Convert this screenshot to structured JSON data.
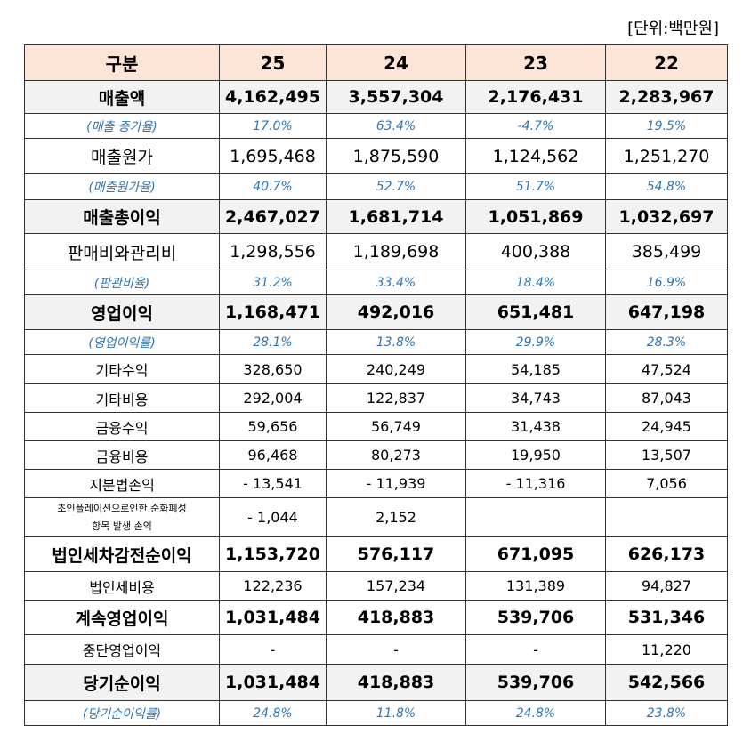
{
  "unit": "[단위:백만원]",
  "table": {
    "header": [
      "구분",
      "25",
      "24",
      "23",
      "22"
    ],
    "rows": [
      {
        "label": "매출액",
        "values": [
          "4,162,495",
          "3,557,304",
          "2,176,431",
          "2,283,967"
        ]
      },
      {
        "label": "(매출 증가율)",
        "values": [
          "17.0%",
          "63.4%",
          "-4.7%",
          "19.5%"
        ]
      },
      {
        "label": "매출원가",
        "values": [
          "1,695,468",
          "1,875,590",
          "1,124,562",
          "1,251,270"
        ]
      },
      {
        "label": "(매출원가율)",
        "values": [
          "40.7%",
          "52.7%",
          "51.7%",
          "54.8%"
        ]
      },
      {
        "label": "매출총이익",
        "values": [
          "2,467,027",
          "1,681,714",
          "1,051,869",
          "1,032,697"
        ]
      },
      {
        "label": "판매비와관리비",
        "values": [
          "1,298,556",
          "1,189,698",
          "400,388",
          "385,499"
        ]
      },
      {
        "label": "(판관비율)",
        "values": [
          "31.2%",
          "33.4%",
          "18.4%",
          "16.9%"
        ]
      },
      {
        "label": "영업이익",
        "values": [
          "1,168,471",
          "492,016",
          "651,481",
          "647,198"
        ]
      },
      {
        "label": "(영업이익률)",
        "values": [
          "28.1%",
          "13.8%",
          "29.9%",
          "28.3%"
        ]
      },
      {
        "label": "기타수익",
        "values": [
          "328,650",
          "240,249",
          "54,185",
          "47,524"
        ]
      },
      {
        "label": "기타비용",
        "values": [
          "292,004",
          "122,837",
          "34,743",
          "87,043"
        ]
      },
      {
        "label": "금융수익",
        "values": [
          "59,656",
          "56,749",
          "31,438",
          "24,945"
        ]
      },
      {
        "label": "금융비용",
        "values": [
          "96,468",
          "80,273",
          "19,950",
          "13,507"
        ]
      },
      {
        "label": "지분법손익",
        "values": [
          "- 13,541",
          "- 11,939",
          "- 11,316",
          "7,056"
        ]
      },
      {
        "label": [
          "초인플레이션으로인한 순화폐성",
          "항목 발생 손익"
        ],
        "values": [
          "- 1,044",
          "2,152",
          null,
          null
        ]
      },
      {
        "label": "법인세차감전순이익",
        "values": [
          "1,153,720",
          "576,117",
          "671,095",
          "626,173"
        ]
      },
      {
        "label": "법인세비용",
        "values": [
          "122,236",
          "157,234",
          "131,389",
          "94,827"
        ]
      },
      {
        "label": "계속영업이익",
        "values": [
          "1,031,484",
          "418,883",
          "539,706",
          "531,346"
        ]
      },
      {
        "label": "중단영업이익",
        "values": [
          "-",
          "-",
          "-",
          "11,220"
        ]
      },
      {
        "label": "당기순이익",
        "values": [
          "1,031,484",
          "418,883",
          "539,706",
          "542,566"
        ]
      },
      {
        "label": "(당기순이익률)",
        "values": [
          "24.8%",
          "11.8%",
          "24.8%",
          "23.8%"
        ]
      }
    ]
  }
}
